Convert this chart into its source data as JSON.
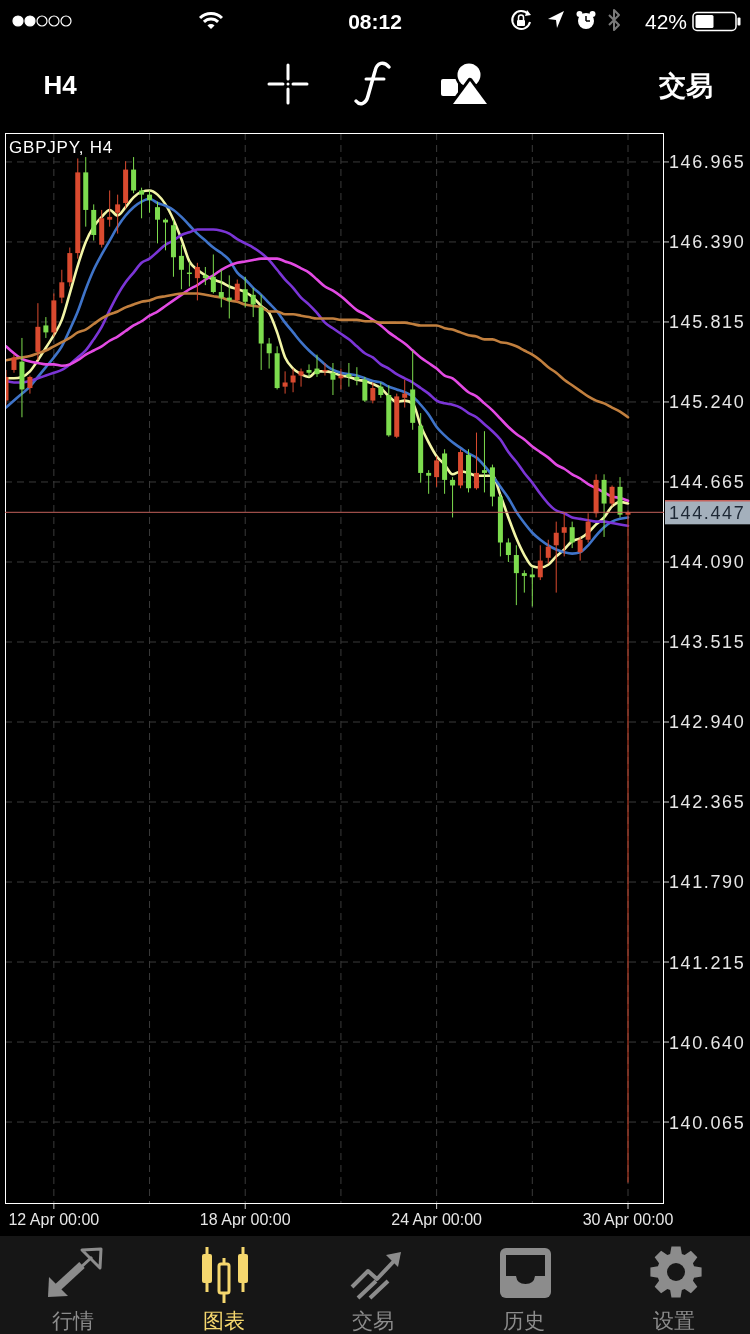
{
  "chart_data": {
    "type": "candlestick",
    "title": "GBPJPY, H4",
    "categories": [
      null,
      null,
      null,
      null,
      null,
      null,
      "12 Apr 00:00",
      null,
      null,
      null,
      null,
      null,
      null,
      null,
      null,
      null,
      null,
      null,
      null,
      null,
      null,
      null,
      null,
      null,
      null,
      null,
      null,
      null,
      null,
      null,
      "18 Apr 00:00",
      null,
      null,
      null,
      null,
      null,
      null,
      null,
      null,
      null,
      null,
      null,
      null,
      null,
      null,
      null,
      null,
      null,
      null,
      null,
      null,
      null,
      null,
      null,
      "24 Apr 00:00",
      null,
      null,
      null,
      null,
      null,
      null,
      null,
      null,
      null,
      null,
      null,
      null,
      null,
      null,
      null,
      null,
      null,
      null,
      null,
      null,
      null,
      null,
      null,
      "30 Apr 00:00"
    ],
    "ohlc": [
      [
        145.25,
        145.47,
        145.22,
        145.42
      ],
      [
        145.47,
        145.58,
        145.45,
        145.56
      ],
      [
        145.53,
        145.7,
        145.13,
        145.33
      ],
      [
        145.34,
        145.43,
        145.3,
        145.42
      ],
      [
        145.6,
        145.95,
        145.54,
        145.78
      ],
      [
        145.79,
        145.85,
        145.7,
        145.74
      ],
      [
        145.74,
        146.02,
        145.71,
        145.97
      ],
      [
        145.99,
        146.19,
        145.95,
        146.1
      ],
      [
        146.1,
        146.35,
        146.07,
        146.31
      ],
      [
        146.31,
        146.99,
        146.27,
        146.89
      ],
      [
        146.89,
        147.0,
        146.5,
        146.62
      ],
      [
        146.62,
        146.66,
        146.4,
        146.44
      ],
      [
        146.37,
        146.62,
        146.35,
        146.56
      ],
      [
        146.55,
        146.76,
        146.5,
        146.57
      ],
      [
        146.6,
        146.73,
        146.45,
        146.66
      ],
      [
        146.67,
        146.97,
        146.63,
        146.91
      ],
      [
        146.91,
        147.0,
        146.74,
        146.76
      ],
      [
        146.76,
        146.78,
        146.56,
        146.73
      ],
      [
        146.73,
        146.76,
        146.6,
        146.69
      ],
      [
        146.64,
        146.68,
        146.38,
        146.55
      ],
      [
        146.55,
        146.56,
        146.33,
        146.53
      ],
      [
        146.51,
        146.55,
        146.14,
        146.28
      ],
      [
        146.29,
        146.37,
        146.05,
        146.19
      ],
      [
        146.17,
        146.25,
        146.07,
        146.16
      ],
      [
        146.13,
        146.24,
        145.97,
        146.21
      ],
      [
        146.15,
        146.21,
        146.08,
        146.13
      ],
      [
        146.14,
        146.3,
        146.02,
        146.03
      ],
      [
        146.03,
        146.19,
        145.92,
        145.99
      ],
      [
        145.99,
        146.15,
        145.84,
        145.97
      ],
      [
        145.97,
        146.12,
        145.96,
        146.09
      ],
      [
        146.05,
        146.14,
        145.92,
        145.96
      ],
      [
        146.01,
        146.06,
        145.85,
        145.94
      ],
      [
        145.92,
        146.01,
        145.47,
        145.66
      ],
      [
        145.66,
        145.7,
        145.48,
        145.59
      ],
      [
        145.59,
        145.64,
        145.33,
        145.34
      ],
      [
        145.35,
        145.46,
        145.3,
        145.38
      ],
      [
        145.38,
        145.48,
        145.31,
        145.43
      ],
      [
        145.43,
        145.48,
        145.35,
        145.46
      ],
      [
        145.47,
        145.51,
        145.42,
        145.45
      ],
      [
        145.48,
        145.58,
        145.42,
        145.44
      ],
      [
        145.46,
        145.52,
        145.43,
        145.47
      ],
      [
        145.45,
        145.52,
        145.29,
        145.4
      ],
      [
        145.41,
        145.48,
        145.33,
        145.43
      ],
      [
        145.44,
        145.52,
        145.35,
        145.42
      ],
      [
        145.42,
        145.49,
        145.36,
        145.4
      ],
      [
        145.4,
        145.42,
        145.24,
        145.25
      ],
      [
        145.25,
        145.38,
        145.23,
        145.34
      ],
      [
        145.35,
        145.38,
        145.27,
        145.29
      ],
      [
        145.29,
        145.36,
        144.99,
        145.0
      ],
      [
        144.99,
        145.3,
        144.98,
        145.28
      ],
      [
        145.27,
        145.4,
        145.2,
        145.3
      ],
      [
        145.33,
        145.61,
        145.04,
        145.09
      ],
      [
        145.07,
        145.16,
        144.66,
        144.73
      ],
      [
        144.73,
        144.75,
        144.58,
        144.71
      ],
      [
        144.7,
        144.85,
        144.63,
        144.82
      ],
      [
        144.87,
        144.9,
        144.58,
        144.68
      ],
      [
        144.68,
        144.7,
        144.41,
        144.64
      ],
      [
        144.64,
        144.9,
        144.62,
        144.88
      ],
      [
        144.86,
        144.9,
        144.59,
        144.62
      ],
      [
        144.62,
        145.02,
        144.61,
        144.73
      ],
      [
        144.75,
        145.03,
        144.59,
        144.73
      ],
      [
        144.77,
        144.79,
        144.49,
        144.56
      ],
      [
        144.56,
        144.58,
        144.13,
        144.23
      ],
      [
        144.23,
        144.26,
        144.09,
        144.14
      ],
      [
        144.14,
        144.21,
        143.78,
        144.01
      ],
      [
        144.01,
        144.03,
        143.87,
        143.99
      ],
      [
        144.0,
        144.05,
        143.77,
        143.98
      ],
      [
        143.98,
        144.21,
        143.96,
        144.1
      ],
      [
        144.12,
        144.25,
        144.08,
        144.2
      ],
      [
        144.21,
        144.38,
        143.87,
        144.3
      ],
      [
        144.3,
        144.44,
        144.13,
        144.34
      ],
      [
        144.34,
        144.38,
        144.19,
        144.23
      ],
      [
        144.16,
        144.27,
        144.1,
        144.25
      ],
      [
        144.25,
        144.44,
        144.23,
        144.38
      ],
      [
        144.44,
        144.72,
        144.41,
        144.68
      ],
      [
        144.68,
        144.72,
        144.27,
        144.51
      ],
      [
        144.51,
        144.64,
        144.49,
        144.63
      ],
      [
        144.63,
        144.7,
        144.41,
        144.43
      ],
      [
        144.43,
        144.46,
        139.63,
        144.447
      ]
    ],
    "colors": [
      "#d94a2f",
      "#d94a2f",
      "#7ddc4e",
      "#d94a2f",
      "#d94a2f",
      "#7ddc4e",
      "#d94a2f",
      "#d94a2f",
      "#d94a2f",
      "#d94a2f",
      "#7ddc4e",
      "#7ddc4e",
      "#d94a2f",
      "#d94a2f",
      "#d94a2f",
      "#d94a2f",
      "#7ddc4e",
      "#7ddc4e",
      "#7ddc4e",
      "#7ddc4e",
      "#7ddc4e",
      "#7ddc4e",
      "#7ddc4e",
      "#7ddc4e",
      "#d94a2f",
      "#7ddc4e",
      "#7ddc4e",
      "#7ddc4e",
      "#7ddc4e",
      "#d94a2f",
      "#7ddc4e",
      "#7ddc4e",
      "#7ddc4e",
      "#7ddc4e",
      "#7ddc4e",
      "#d94a2f",
      "#d94a2f",
      "#d94a2f",
      "#7ddc4e",
      "#7ddc4e",
      "#d94a2f",
      "#7ddc4e",
      "#d94a2f",
      "#7ddc4e",
      "#7ddc4e",
      "#7ddc4e",
      "#d94a2f",
      "#7ddc4e",
      "#7ddc4e",
      "#d94a2f",
      "#d94a2f",
      "#7ddc4e",
      "#7ddc4e",
      "#7ddc4e",
      "#d94a2f",
      "#7ddc4e",
      "#7ddc4e",
      "#d94a2f",
      "#7ddc4e",
      "#d94a2f",
      "#7ddc4e",
      "#7ddc4e",
      "#7ddc4e",
      "#7ddc4e",
      "#7ddc4e",
      "#7ddc4e",
      "#7ddc4e",
      "#d94a2f",
      "#d94a2f",
      "#d94a2f",
      "#d94a2f",
      "#7ddc4e",
      "#d94a2f",
      "#d94a2f",
      "#d94a2f",
      "#7ddc4e",
      "#d94a2f",
      "#7ddc4e",
      "#d94a2f"
    ],
    "series": [
      {
        "type": "line",
        "color": "#f2f5a6",
        "values": [
          145.41,
          145.41,
          145.42,
          145.46,
          145.54,
          145.63,
          145.72,
          145.83,
          146.02,
          146.22,
          146.39,
          146.5,
          146.57,
          146.62,
          146.58,
          146.64,
          146.71,
          146.75,
          146.76,
          146.73,
          146.66,
          146.55,
          146.41,
          146.25,
          146.19,
          146.15,
          146.12,
          146.1,
          146.07,
          146.05,
          146.03,
          145.99,
          145.93,
          145.88,
          145.74,
          145.56,
          145.48,
          145.44,
          145.42,
          145.46,
          145.46,
          145.45,
          145.43,
          145.42,
          145.4,
          145.39,
          145.37,
          145.34,
          145.28,
          145.24,
          145.25,
          145.23,
          145.07,
          144.95,
          144.85,
          144.79,
          144.72,
          144.74,
          144.73,
          144.71,
          144.71,
          144.71,
          144.57,
          144.41,
          144.26,
          144.14,
          144.06,
          144.05,
          144.07,
          144.13,
          144.18,
          144.24,
          144.26,
          144.3,
          144.36,
          144.41,
          144.49,
          144.52,
          144.51
        ]
      },
      {
        "type": "line",
        "color": "#3f74c9",
        "values": [
          145.2,
          145.25,
          145.3,
          145.35,
          145.42,
          145.49,
          145.56,
          145.64,
          145.76,
          145.89,
          146.05,
          146.19,
          146.3,
          146.4,
          146.5,
          146.58,
          146.64,
          146.68,
          146.7,
          146.67,
          146.65,
          146.62,
          146.57,
          146.51,
          146.45,
          146.4,
          146.35,
          146.31,
          146.26,
          146.17,
          146.12,
          146.06,
          146.01,
          145.95,
          145.89,
          145.81,
          145.74,
          145.67,
          145.61,
          145.56,
          145.51,
          145.47,
          145.45,
          145.44,
          145.43,
          145.41,
          145.39,
          145.38,
          145.35,
          145.33,
          145.31,
          145.28,
          145.22,
          145.15,
          145.06,
          145.0,
          144.95,
          144.91,
          144.87,
          144.84,
          144.78,
          144.71,
          144.63,
          144.55,
          144.45,
          144.37,
          144.3,
          144.25,
          144.21,
          144.18,
          144.16,
          144.15,
          144.16,
          144.21,
          144.28,
          144.34,
          144.38,
          144.4,
          144.41
        ]
      },
      {
        "type": "line",
        "color": "#7b35d6",
        "values": [
          145.39,
          145.38,
          145.38,
          145.39,
          145.41,
          145.43,
          145.45,
          145.47,
          145.51,
          145.56,
          145.61,
          145.69,
          145.78,
          145.9,
          146.01,
          146.1,
          146.17,
          146.24,
          146.27,
          146.32,
          146.37,
          146.4,
          146.44,
          146.46,
          146.48,
          146.48,
          146.48,
          146.47,
          146.45,
          146.41,
          146.38,
          146.35,
          146.31,
          146.26,
          146.19,
          146.12,
          146.06,
          145.99,
          145.94,
          145.88,
          145.81,
          145.77,
          145.73,
          145.69,
          145.64,
          145.59,
          145.56,
          145.51,
          145.48,
          145.44,
          145.41,
          145.38,
          145.34,
          145.3,
          145.25,
          145.23,
          145.22,
          145.2,
          145.16,
          145.13,
          145.08,
          145.03,
          144.97,
          144.88,
          144.81,
          144.73,
          144.66,
          144.58,
          144.51,
          144.46,
          144.44,
          144.41,
          144.4,
          144.39,
          144.38,
          144.38,
          144.37,
          144.36,
          144.35
        ]
      },
      {
        "type": "line",
        "color": "#e34ae3",
        "values": [
          145.64,
          145.59,
          145.55,
          145.53,
          145.52,
          145.51,
          145.51,
          145.5,
          145.51,
          145.54,
          145.58,
          145.61,
          145.64,
          145.68,
          145.71,
          145.75,
          145.79,
          145.82,
          145.86,
          145.89,
          145.93,
          145.97,
          146.01,
          146.05,
          146.08,
          146.12,
          146.15,
          146.19,
          146.22,
          146.24,
          146.25,
          146.26,
          146.27,
          146.27,
          146.27,
          146.25,
          146.23,
          146.2,
          146.17,
          146.12,
          146.07,
          146.04,
          146.0,
          145.95,
          145.9,
          145.87,
          145.83,
          145.79,
          145.74,
          145.7,
          145.66,
          145.61,
          145.56,
          145.52,
          145.48,
          145.43,
          145.41,
          145.36,
          145.31,
          145.28,
          145.23,
          145.18,
          145.12,
          145.06,
          145.01,
          144.97,
          144.92,
          144.88,
          144.84,
          144.79,
          144.76,
          144.72,
          144.69,
          144.65,
          144.62,
          144.59,
          144.56,
          144.55,
          144.53
        ]
      },
      {
        "type": "line",
        "color": "#c17f3e",
        "values": [
          145.54,
          145.55,
          145.56,
          145.57,
          145.59,
          145.61,
          145.64,
          145.67,
          145.7,
          145.74,
          145.76,
          145.8,
          145.84,
          145.87,
          145.89,
          145.92,
          145.94,
          145.96,
          145.97,
          145.99,
          146.0,
          146.01,
          146.02,
          146.02,
          146.02,
          146.01,
          146.0,
          145.99,
          145.97,
          145.96,
          145.94,
          145.93,
          145.92,
          145.89,
          145.89,
          145.87,
          145.87,
          145.86,
          145.85,
          145.84,
          145.84,
          145.84,
          145.83,
          145.83,
          145.83,
          145.82,
          145.82,
          145.81,
          145.81,
          145.81,
          145.81,
          145.8,
          145.79,
          145.79,
          145.79,
          145.77,
          145.76,
          145.74,
          145.72,
          145.71,
          145.69,
          145.69,
          145.67,
          145.66,
          145.64,
          145.61,
          145.58,
          145.54,
          145.49,
          145.45,
          145.4,
          145.36,
          145.32,
          145.28,
          145.25,
          145.23,
          145.2,
          145.17,
          145.13
        ]
      }
    ],
    "ylim": [
      139.476,
      147.173
    ],
    "yticks": [
      140.065,
      {
        "value": 140.64,
        "label": "140.640"
      },
      141.215,
      {
        "value": 141.79,
        "label": "141.790"
      },
      142.365,
      {
        "value": 142.94,
        "label": "142.940"
      },
      143.515,
      {
        "value": 144.09,
        "label": "144.090"
      },
      144.665,
      {
        "value": 145.24,
        "label": "145.240"
      },
      145.815,
      {
        "value": 146.39,
        "label": "146.390"
      },
      146.965
    ],
    "grid": true,
    "ref_lines": [
      {
        "axis": "y",
        "value": 144.447,
        "label": "144.447",
        "color": "#c4625c"
      }
    ],
    "annotations": [
      "08:12",
      "42%",
      "H4",
      "交易",
      "行情",
      "图表",
      "交易",
      "历史",
      "设置"
    ]
  }
}
